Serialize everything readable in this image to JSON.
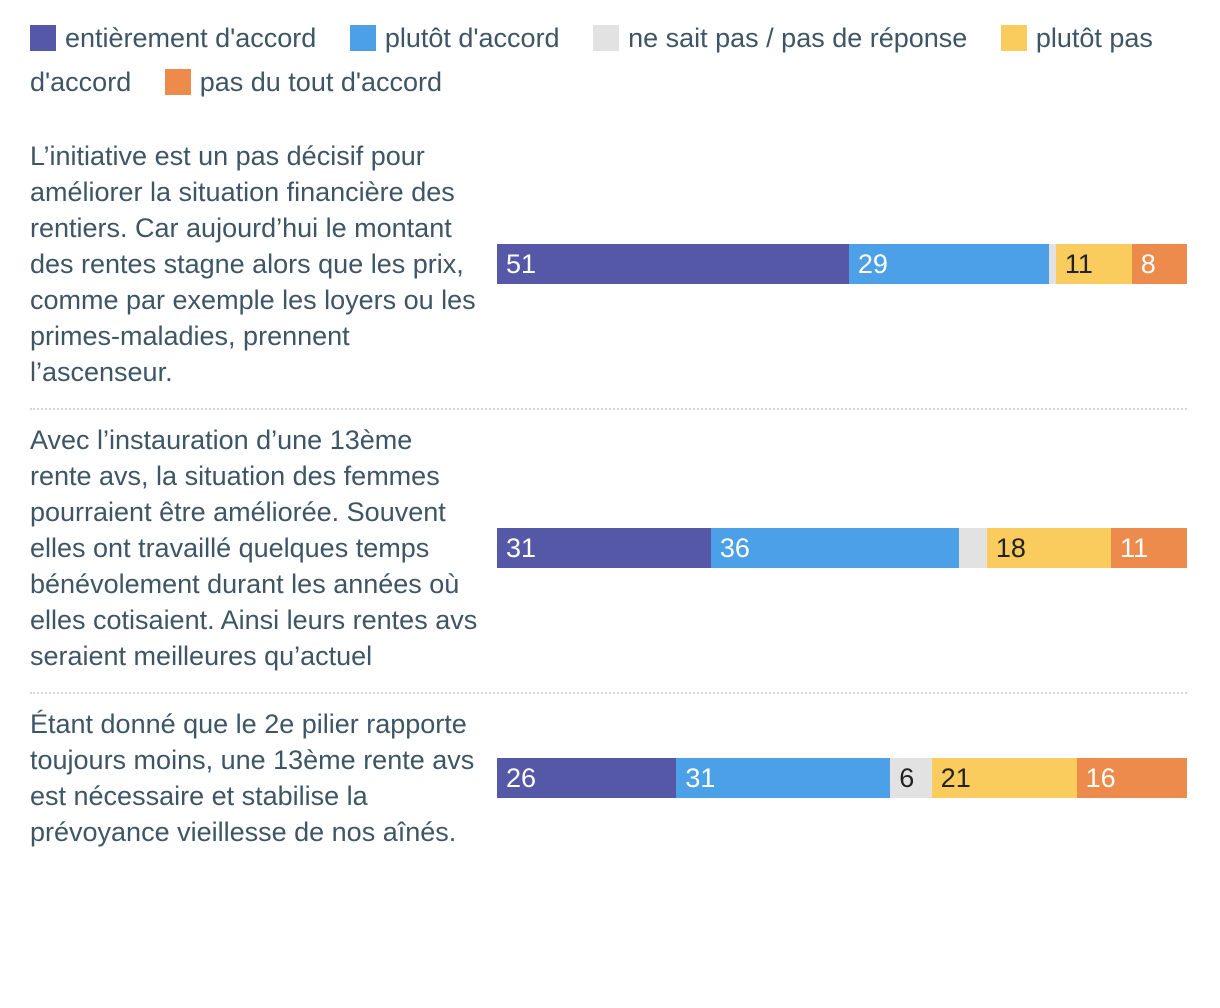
{
  "legend": {
    "items": [
      {
        "key": "entierement-daccord",
        "label": "entièrement d'accord",
        "color": "#5558a7",
        "label_color": "#ffffff"
      },
      {
        "key": "plutot-daccord",
        "label": "plutôt d'accord",
        "color": "#4ba0e8",
        "label_color": "#ffffff"
      },
      {
        "key": "ne-sait-pas",
        "label": "ne sait pas / pas de réponse",
        "color": "#e2e2e2",
        "label_color": "#222222"
      },
      {
        "key": "plutot-pas-daccord",
        "label": "plutôt pas d'accord",
        "color": "#f9cc5d",
        "label_color": "#222222"
      },
      {
        "key": "pas-du-tout-daccord",
        "label": "pas du tout d'accord",
        "color": "#ed8b4c",
        "label_color": "#ffffff"
      }
    ]
  },
  "chart_data": {
    "type": "bar",
    "variant": "horizontal-stacked",
    "xlim": [
      0,
      100
    ],
    "grid": false,
    "legend_position": "top",
    "value_label_position": "inside-left",
    "value_label_min": 5,
    "categories": [
      "L’initiative est un pas décisif pour améliorer la situation financière des rentiers. Car aujourd’hui le montant des rentes stagne alors que les prix, comme par exemple les loyers ou les primes-maladies, prennent l’ascenseur.",
      "Avec l’instauration d’une 13ème rente avs, la situation des femmes pourraient être améliorée. Souvent elles ont travaillé quelques temps bénévolement durant les années où elles cotisaient. Ainsi leurs rentes avs seraient meilleures qu’actuel",
      "Étant donné que le 2e pilier rapporte toujours moins, une 13ème rente avs est nécessaire et stabilise la prévoyance vieillesse de nos aînés."
    ],
    "series": [
      {
        "name": "entièrement d'accord",
        "values": [
          51,
          31,
          26
        ]
      },
      {
        "name": "plutôt d'accord",
        "values": [
          29,
          36,
          31
        ]
      },
      {
        "name": "ne sait pas / pas de réponse",
        "values": [
          1,
          4,
          6
        ]
      },
      {
        "name": "plutôt pas d'accord",
        "values": [
          11,
          18,
          21
        ]
      },
      {
        "name": "pas du tout d'accord",
        "values": [
          8,
          11,
          16
        ]
      }
    ]
  }
}
